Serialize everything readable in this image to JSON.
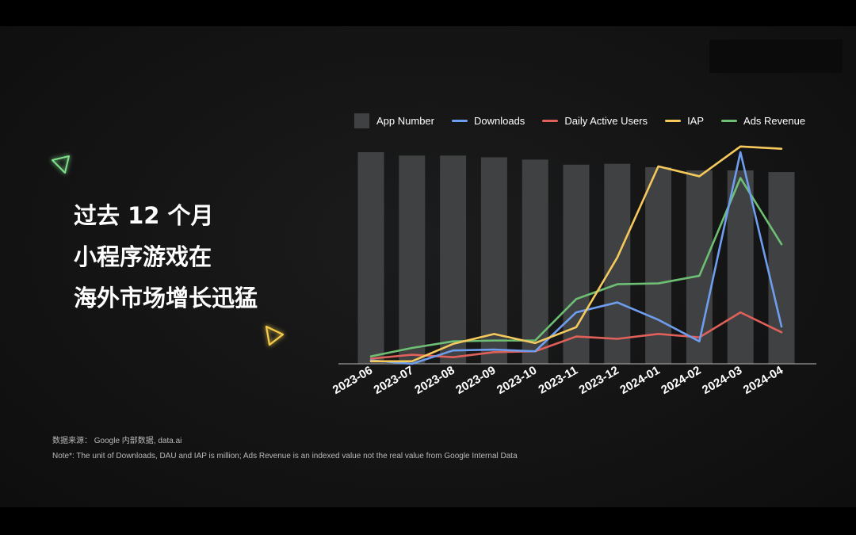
{
  "headline": {
    "line1": "过去 12 个月",
    "line2": "小程序游戏在",
    "line3": "海外市场增长迅猛"
  },
  "source_text": "数据来源：  Google 内部数据, data.ai",
  "note_text": "Note*:  The unit of Downloads, DAU and IAP is million; Ads Revenue is an indexed value not the real value from Google Internal Data",
  "colors": {
    "bar": "#3f4142",
    "downloads": "#6f9ef0",
    "dau": "#e0605a",
    "iap": "#f5c95c",
    "ads": "#6ebf74",
    "deco_green": "#7fe08a",
    "deco_yellow": "#f5cb4a"
  },
  "icons": [
    "triangle-outline-green-icon",
    "triangle-outline-yellow-icon"
  ],
  "chart_data": {
    "type": "bar",
    "categories": [
      "2023-06",
      "2023-07",
      "2023-08",
      "2023-09",
      "2023-10",
      "2023-11",
      "2023-12",
      "2024-01",
      "2024-02",
      "2024-03",
      "2024-04"
    ],
    "legend_position": "top",
    "grid": false,
    "y_axis_visible": false,
    "ylim": [
      0,
      100
    ],
    "series": [
      {
        "name": "App Number",
        "kind": "bar",
        "color": "#3f4142",
        "values": [
          100,
          98.4,
          98.4,
          97.6,
          96.5,
          94.1,
          94.5,
          92.9,
          91.4,
          91.4,
          90.6
        ]
      },
      {
        "name": "Downloads",
        "kind": "line",
        "color": "#6f9ef0",
        "values": [
          1.6,
          0,
          6.3,
          6.7,
          5.9,
          24.3,
          29,
          20.8,
          10.6,
          100,
          17.6
        ]
      },
      {
        "name": "Daily Active Users",
        "kind": "line",
        "color": "#e0605a",
        "values": [
          2.4,
          4.3,
          3.1,
          5.5,
          5.9,
          12.9,
          11.8,
          14.1,
          12.5,
          24.3,
          14.9
        ]
      },
      {
        "name": "IAP",
        "kind": "line",
        "color": "#f5c95c",
        "values": [
          1.2,
          1.2,
          9.4,
          14.1,
          9.8,
          17.3,
          50.2,
          93.3,
          88.6,
          102.7,
          101.6
        ]
      },
      {
        "name": "Ads Revenue",
        "kind": "line",
        "color": "#6ebf74",
        "values": [
          3.5,
          7.5,
          10.6,
          11,
          11,
          30.6,
          37.6,
          38,
          41.6,
          87.8,
          56.5
        ]
      }
    ]
  }
}
